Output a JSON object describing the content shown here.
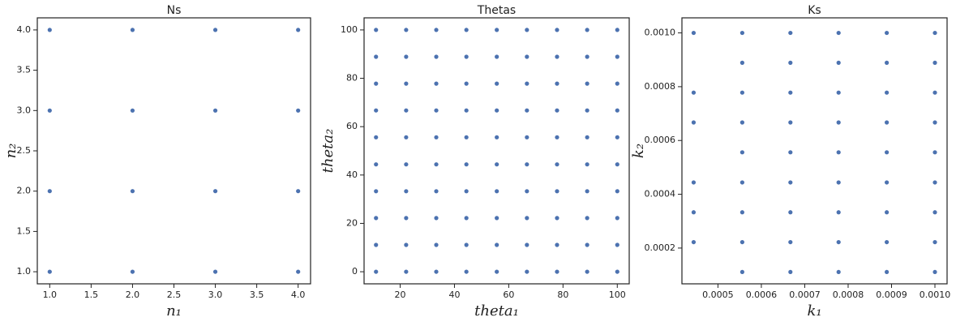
{
  "chart_data": [
    {
      "type": "scatter",
      "title": "Ns",
      "x_label": "n₁",
      "y_label": "n₂",
      "color": "#4c72b0",
      "x": [
        1,
        1,
        1,
        1,
        2,
        2,
        2,
        2,
        3,
        3,
        3,
        3,
        4,
        4,
        4,
        4
      ],
      "values": [
        1,
        2,
        3,
        4,
        1,
        2,
        3,
        4,
        1,
        2,
        3,
        4,
        1,
        2,
        3,
        4
      ],
      "xlim": [
        0.85,
        4.15
      ],
      "ylim": [
        0.85,
        4.15
      ],
      "xticks": [
        {
          "value": 1,
          "label": "1.0"
        },
        {
          "value": 1.5,
          "label": "1.5"
        },
        {
          "value": 2,
          "label": "2.0"
        },
        {
          "value": 2.5,
          "label": "2.5"
        },
        {
          "value": 3,
          "label": "3.0"
        },
        {
          "value": 3.5,
          "label": "3.5"
        },
        {
          "value": 4,
          "label": "4.0"
        }
      ],
      "yticks": [
        {
          "value": 1,
          "label": "1.0"
        },
        {
          "value": 1.5,
          "label": "1.5"
        },
        {
          "value": 2,
          "label": "2.0"
        },
        {
          "value": 2.5,
          "label": "2.5"
        },
        {
          "value": 3,
          "label": "3.0"
        },
        {
          "value": 3.5,
          "label": "3.5"
        },
        {
          "value": 4,
          "label": "4.0"
        }
      ]
    },
    {
      "type": "scatter",
      "title": "Thetas",
      "x_label": "theta₁",
      "y_label": "theta₂",
      "color": "#4c72b0",
      "x": [
        11.1,
        11.1,
        11.1,
        11.1,
        11.1,
        11.1,
        11.1,
        11.1,
        11.1,
        11.1,
        22.2,
        22.2,
        22.2,
        22.2,
        22.2,
        22.2,
        22.2,
        22.2,
        22.2,
        22.2,
        33.3,
        33.3,
        33.3,
        33.3,
        33.3,
        33.3,
        33.3,
        33.3,
        33.3,
        33.3,
        44.4,
        44.4,
        44.4,
        44.4,
        44.4,
        44.4,
        44.4,
        44.4,
        44.4,
        44.4,
        55.6,
        55.6,
        55.6,
        55.6,
        55.6,
        55.6,
        55.6,
        55.6,
        55.6,
        55.6,
        66.7,
        66.7,
        66.7,
        66.7,
        66.7,
        66.7,
        66.7,
        66.7,
        66.7,
        66.7,
        77.8,
        77.8,
        77.8,
        77.8,
        77.8,
        77.8,
        77.8,
        77.8,
        77.8,
        77.8,
        88.9,
        88.9,
        88.9,
        88.9,
        88.9,
        88.9,
        88.9,
        88.9,
        88.9,
        88.9,
        100,
        100,
        100,
        100,
        100,
        100,
        100,
        100,
        100,
        100
      ],
      "values": [
        0,
        11.1,
        22.2,
        33.3,
        44.4,
        55.6,
        66.7,
        77.8,
        88.9,
        100,
        0,
        11.1,
        22.2,
        33.3,
        44.4,
        55.6,
        66.7,
        77.8,
        88.9,
        100,
        0,
        11.1,
        22.2,
        33.3,
        44.4,
        55.6,
        66.7,
        77.8,
        88.9,
        100,
        0,
        11.1,
        22.2,
        33.3,
        44.4,
        55.6,
        66.7,
        77.8,
        88.9,
        100,
        0,
        11.1,
        22.2,
        33.3,
        44.4,
        55.6,
        66.7,
        77.8,
        88.9,
        100,
        0,
        11.1,
        22.2,
        33.3,
        44.4,
        55.6,
        66.7,
        77.8,
        88.9,
        100,
        0,
        11.1,
        22.2,
        33.3,
        44.4,
        55.6,
        66.7,
        77.8,
        88.9,
        100,
        0,
        11.1,
        22.2,
        33.3,
        44.4,
        55.6,
        66.7,
        77.8,
        88.9,
        100,
        0,
        11.1,
        22.2,
        33.3,
        44.4,
        55.6,
        66.7,
        77.8,
        88.9,
        100
      ],
      "xlim": [
        6.7,
        104.4
      ],
      "ylim": [
        -5,
        105
      ],
      "xticks": [
        20,
        40,
        60,
        80,
        100
      ],
      "yticks": [
        0,
        20,
        40,
        60,
        80,
        100
      ]
    },
    {
      "type": "scatter",
      "title": "Ks",
      "x_label": "k₁",
      "y_label": "k₂",
      "color": "#4c72b0",
      "x": [
        0.000444,
        0.000444,
        0.000444,
        0.000444,
        0.000444,
        0.000444,
        0.000556,
        0.000556,
        0.000556,
        0.000556,
        0.000556,
        0.000556,
        0.000556,
        0.000556,
        0.000556,
        0.000667,
        0.000667,
        0.000667,
        0.000667,
        0.000667,
        0.000667,
        0.000667,
        0.000667,
        0.000667,
        0.000778,
        0.000778,
        0.000778,
        0.000778,
        0.000778,
        0.000778,
        0.000778,
        0.000778,
        0.000778,
        0.000889,
        0.000889,
        0.000889,
        0.000889,
        0.000889,
        0.000889,
        0.000889,
        0.000889,
        0.000889,
        0.001,
        0.001,
        0.001,
        0.001,
        0.001,
        0.001,
        0.001,
        0.001,
        0.001
      ],
      "values": [
        0.000222,
        0.000333,
        0.000444,
        0.000667,
        0.000778,
        0.001,
        0.000111,
        0.000222,
        0.000333,
        0.000444,
        0.000556,
        0.000667,
        0.000778,
        0.000889,
        0.001,
        0.000111,
        0.000222,
        0.000333,
        0.000444,
        0.000556,
        0.000667,
        0.000778,
        0.000889,
        0.001,
        0.000111,
        0.000222,
        0.000333,
        0.000444,
        0.000556,
        0.000667,
        0.000778,
        0.000889,
        0.001,
        0.000111,
        0.000222,
        0.000333,
        0.000444,
        0.000556,
        0.000667,
        0.000778,
        0.000889,
        0.001,
        0.000111,
        0.000222,
        0.000333,
        0.000444,
        0.000556,
        0.000667,
        0.000778,
        0.000889,
        0.001
      ],
      "xlim": [
        0.000417,
        0.001028
      ],
      "ylim": [
        6.7e-05,
        0.001056
      ],
      "xticks": [
        0.0005,
        0.0006,
        0.0007,
        0.0008,
        0.0009,
        {
          "value": 0.001,
          "label": "0.0010"
        }
      ],
      "yticks": [
        0.0002,
        0.0004,
        0.0006,
        0.0008,
        {
          "value": 0.001,
          "label": "0.0010"
        }
      ]
    }
  ]
}
